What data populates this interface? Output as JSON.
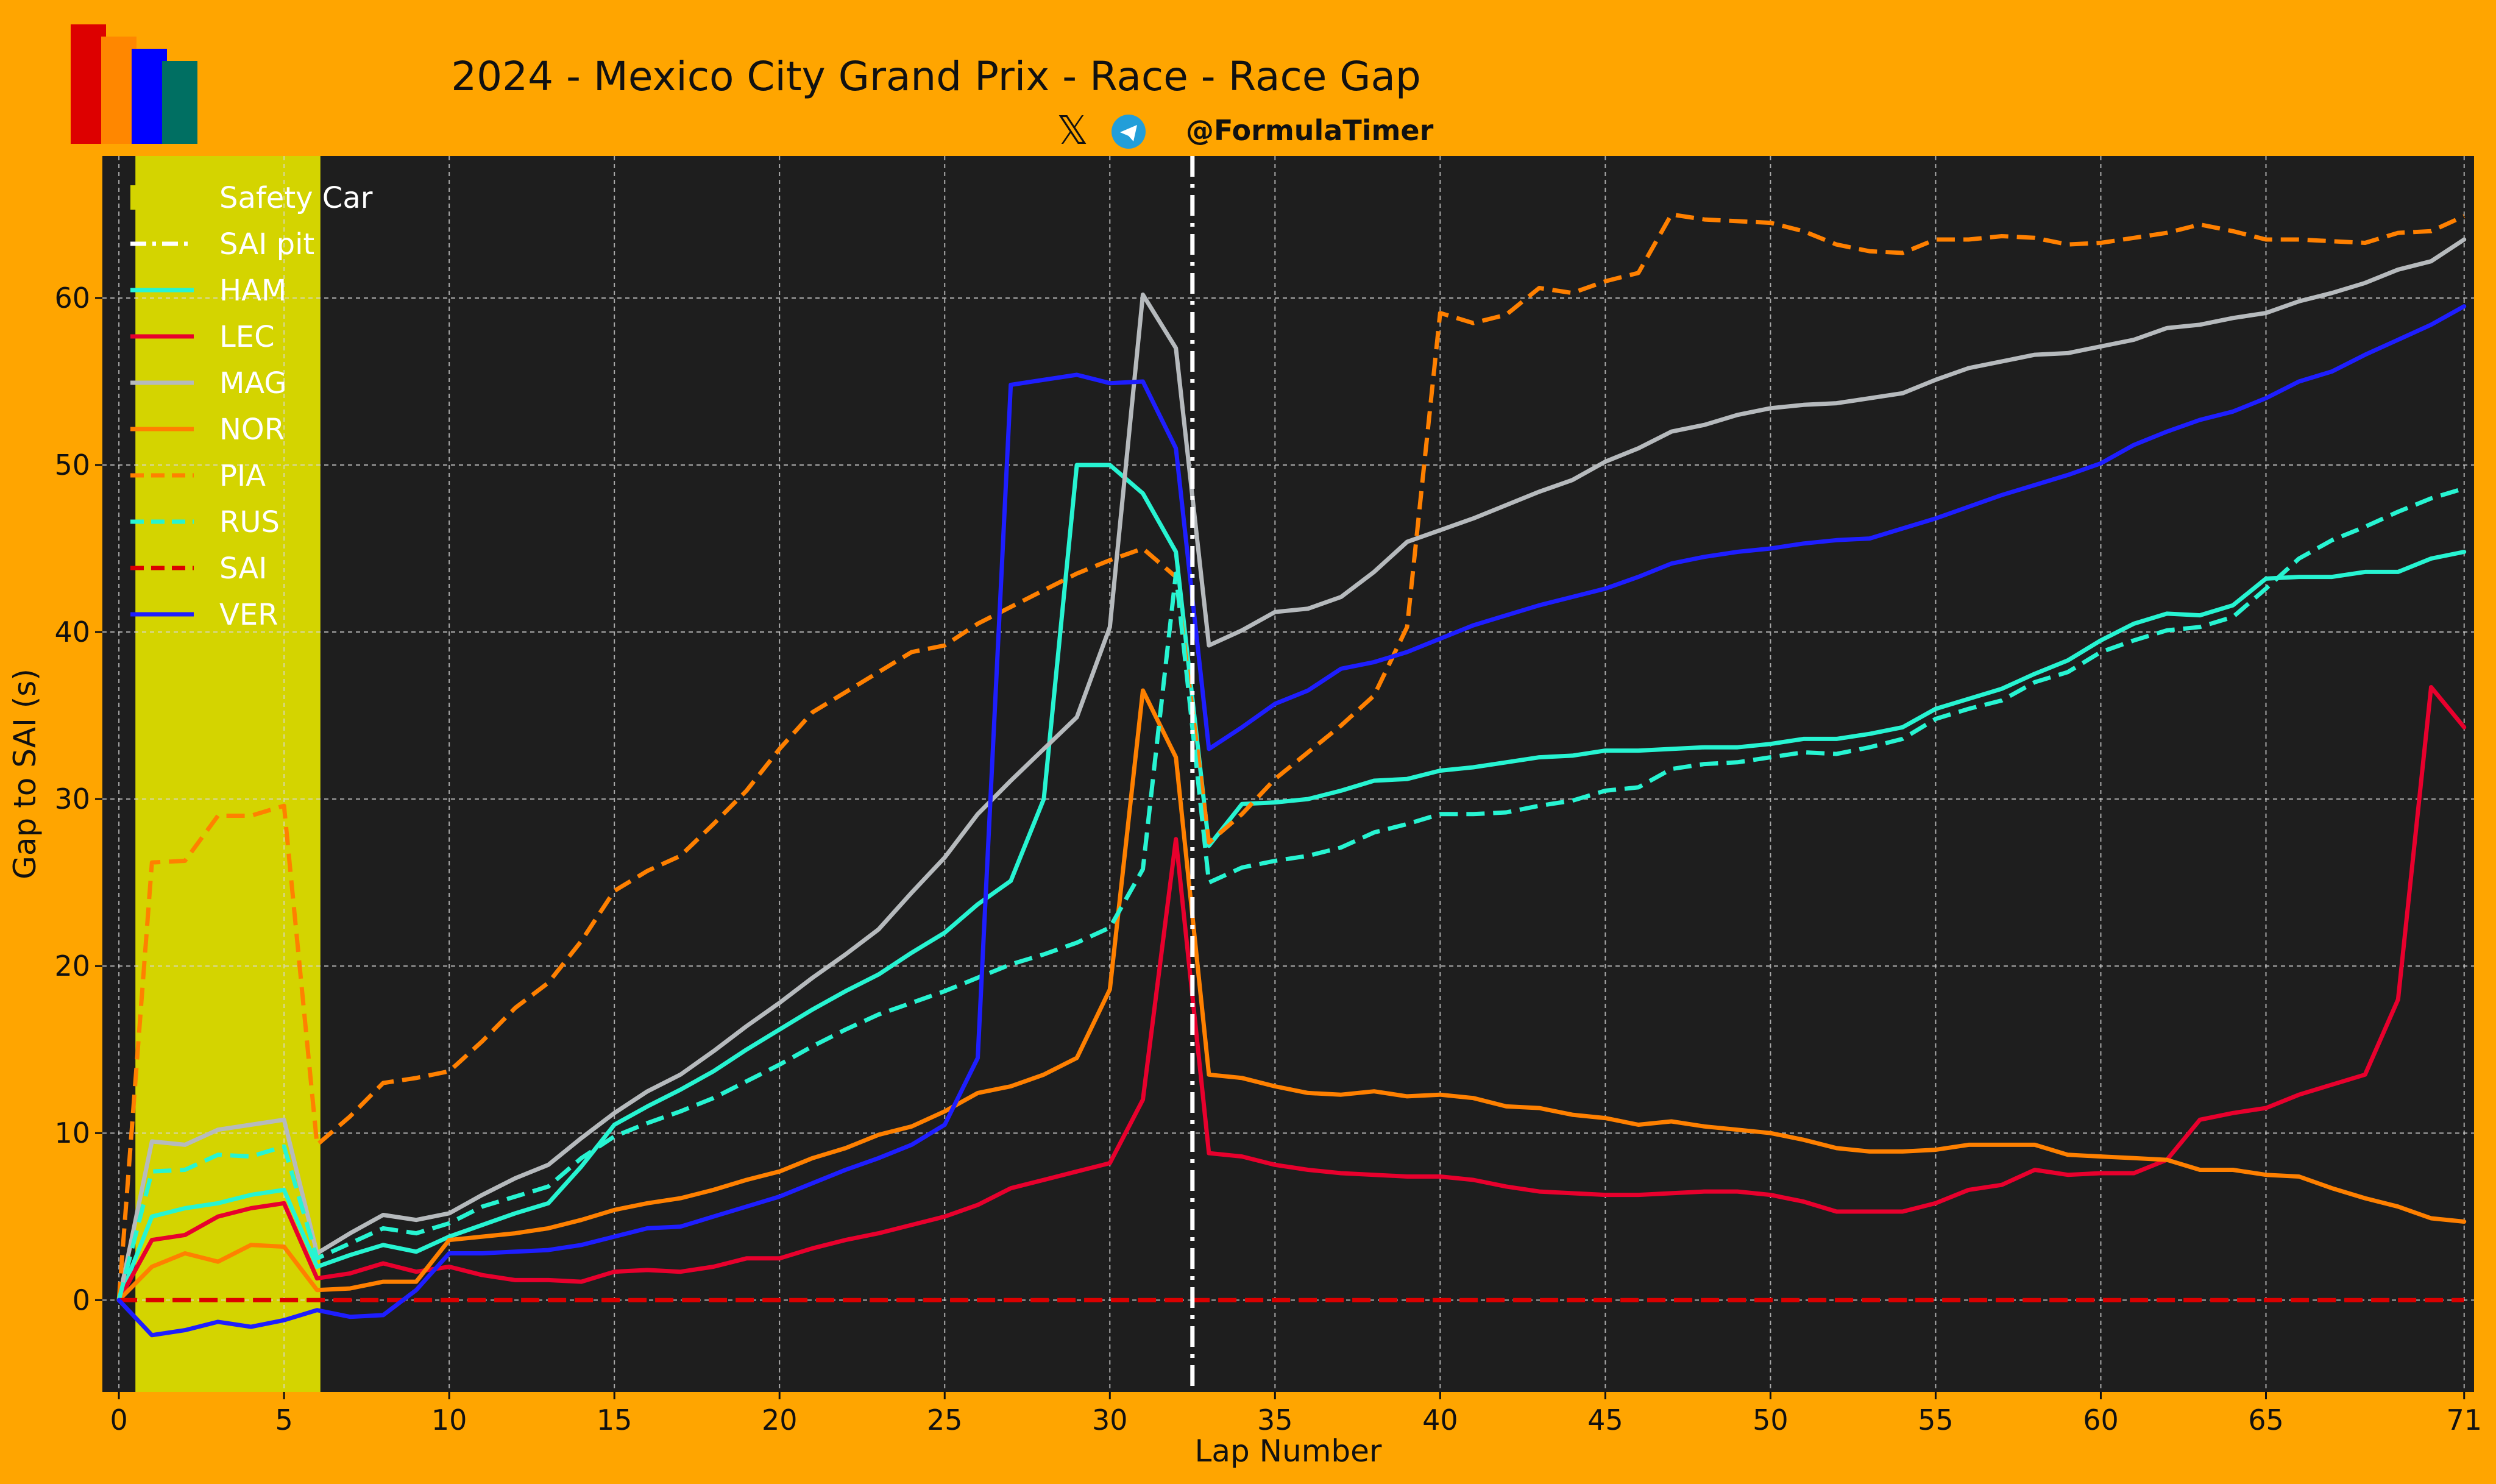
{
  "header": {
    "title": "2024 - Mexico City Grand Prix - Race - Race Gap",
    "handle": "@FormulaTimer"
  },
  "colors": {
    "background": "#FFA500",
    "plot_bg": "#1E1E1E",
    "safety_car": "#D4D400",
    "logo": [
      "#DD0000",
      "#FF8700",
      "#0000FF",
      "#006F62"
    ]
  },
  "chart_data": {
    "type": "line",
    "title": "2024 - Mexico City Grand Prix - Race - Race Gap",
    "xlabel": "Lap Number",
    "ylabel": "Gap to SAI (s)",
    "xlim": [
      -0.5,
      71.3
    ],
    "ylim": [
      -5.5,
      68.5
    ],
    "xticks": [
      0,
      5,
      10,
      15,
      20,
      25,
      30,
      35,
      40,
      45,
      50,
      55,
      60,
      65,
      71
    ],
    "yticks": [
      0,
      10,
      20,
      30,
      40,
      50,
      60
    ],
    "grid": true,
    "legend_position": "top-left",
    "safety_car": {
      "label": "Safety Car",
      "x_start": 0.5,
      "x_end": 6.1,
      "color": "#D4D400"
    },
    "pit": {
      "label": "SAI pit",
      "x": 32.5,
      "color": "#FFFFFF"
    },
    "series": [
      {
        "name": "HAM",
        "color": "#27F4D2",
        "dash": "solid",
        "values": [
          0,
          5.0,
          5.5,
          5.8,
          6.3,
          6.6,
          2.0,
          2.7,
          3.3,
          2.9,
          3.8,
          4.5,
          5.2,
          5.8,
          8.0,
          10.5,
          11.6,
          12.6,
          13.7,
          15.0,
          16.2,
          17.4,
          18.5,
          19.5,
          20.8,
          22.0,
          23.7,
          25.1,
          30.0,
          50.0,
          50.0,
          48.3,
          44.8,
          27.2,
          29.7,
          29.8,
          30.0,
          30.5,
          31.1,
          31.2,
          31.7,
          31.9,
          32.2,
          32.5,
          32.6,
          32.9,
          32.9,
          33.0,
          33.1,
          33.1,
          33.3,
          33.6,
          33.6,
          33.9,
          34.3,
          35.4,
          36.0,
          36.6,
          37.5,
          38.3,
          39.5,
          40.5,
          41.1,
          41.0,
          41.6,
          43.2,
          43.3,
          43.3,
          43.6,
          43.6,
          44.4,
          44.8
        ]
      },
      {
        "name": "LEC",
        "color": "#E8002D",
        "dash": "solid",
        "values": [
          0,
          3.6,
          3.9,
          5.0,
          5.5,
          5.8,
          1.3,
          1.6,
          2.2,
          1.7,
          2.0,
          1.5,
          1.2,
          1.2,
          1.1,
          1.7,
          1.8,
          1.7,
          2.0,
          2.5,
          2.5,
          3.1,
          3.6,
          4.0,
          4.5,
          5.0,
          5.7,
          6.7,
          7.2,
          7.7,
          8.2,
          12.0,
          27.6,
          8.8,
          8.6,
          8.1,
          7.8,
          7.6,
          7.5,
          7.4,
          7.4,
          7.2,
          6.8,
          6.5,
          6.4,
          6.3,
          6.3,
          6.4,
          6.5,
          6.5,
          6.3,
          5.9,
          5.3,
          5.3,
          5.3,
          5.8,
          6.6,
          6.9,
          7.8,
          7.5,
          7.6,
          7.6,
          8.4,
          10.8,
          11.2,
          11.5,
          12.3,
          12.9,
          13.5,
          18.0,
          36.7,
          34.3
        ]
      },
      {
        "name": "MAG",
        "color": "#B6BABD",
        "dash": "solid",
        "values": [
          0,
          9.5,
          9.3,
          10.2,
          10.5,
          10.8,
          2.8,
          4.0,
          5.1,
          4.8,
          5.2,
          6.3,
          7.3,
          8.1,
          9.7,
          11.2,
          12.5,
          13.5,
          14.9,
          16.4,
          17.8,
          19.3,
          20.7,
          22.2,
          24.4,
          26.5,
          29.1,
          31.1,
          33.0,
          34.9,
          40.3,
          60.2,
          57.0,
          39.2,
          40.1,
          41.2,
          41.4,
          42.1,
          43.6,
          45.4,
          46.1,
          46.8,
          47.6,
          48.4,
          49.1,
          50.2,
          51.0,
          52.0,
          52.4,
          53.0,
          53.4,
          53.6,
          53.7,
          54.0,
          54.3,
          55.1,
          55.8,
          56.2,
          56.6,
          56.7,
          57.1,
          57.5,
          58.2,
          58.4,
          58.8,
          59.1,
          59.8,
          60.3,
          60.9,
          61.7,
          62.2,
          63.5
        ]
      },
      {
        "name": "NOR",
        "color": "#FF8000",
        "dash": "solid",
        "values": [
          0,
          2.0,
          2.8,
          2.3,
          3.3,
          3.2,
          0.6,
          0.7,
          1.1,
          1.1,
          3.6,
          3.8,
          4.0,
          4.3,
          4.8,
          5.4,
          5.8,
          6.1,
          6.6,
          7.2,
          7.7,
          8.5,
          9.1,
          9.9,
          10.4,
          11.3,
          12.4,
          12.8,
          13.5,
          14.5,
          18.6,
          36.5,
          32.5,
          13.5,
          13.3,
          12.8,
          12.4,
          12.3,
          12.5,
          12.2,
          12.3,
          12.1,
          11.6,
          11.5,
          11.1,
          10.9,
          10.5,
          10.7,
          10.4,
          10.2,
          10.0,
          9.6,
          9.1,
          8.9,
          8.9,
          9.0,
          9.3,
          9.3,
          9.3,
          8.7,
          8.6,
          8.5,
          8.4,
          7.8,
          7.8,
          7.5,
          7.4,
          6.7,
          6.1,
          5.6,
          4.9,
          4.7
        ]
      },
      {
        "name": "PIA",
        "color": "#FF8000",
        "dash": "dashed",
        "values": [
          0,
          26.2,
          26.3,
          29.0,
          29.0,
          29.6,
          9.3,
          11.0,
          13.0,
          13.3,
          13.7,
          15.5,
          17.5,
          19.0,
          21.5,
          24.5,
          25.7,
          26.6,
          28.5,
          30.5,
          33.0,
          35.2,
          36.4,
          37.6,
          38.8,
          39.2,
          40.5,
          41.5,
          42.5,
          43.5,
          44.3,
          45.0,
          43.3,
          27.4,
          29.1,
          31.2,
          32.8,
          34.4,
          36.2,
          40.3,
          59.1,
          58.5,
          59.0,
          60.6,
          60.3,
          61.0,
          61.5,
          65.0,
          64.7,
          64.6,
          64.5,
          64.0,
          63.2,
          62.8,
          62.7,
          63.5,
          63.5,
          63.7,
          63.6,
          63.2,
          63.3,
          63.6,
          63.9,
          64.4,
          64.0,
          63.5,
          63.5,
          63.4,
          63.3,
          63.9,
          64.0,
          64.9
        ]
      },
      {
        "name": "RUS",
        "color": "#27F4D2",
        "dash": "dashed",
        "values": [
          0,
          7.7,
          7.8,
          8.7,
          8.6,
          9.2,
          2.5,
          3.4,
          4.3,
          4.0,
          4.6,
          5.6,
          6.2,
          6.8,
          8.5,
          9.8,
          10.6,
          11.3,
          12.1,
          13.1,
          14.1,
          15.2,
          16.2,
          17.1,
          17.8,
          18.5,
          19.3,
          20.1,
          20.7,
          21.4,
          22.3,
          25.8,
          43.5,
          25.0,
          25.9,
          26.3,
          26.6,
          27.1,
          28.0,
          28.5,
          29.1,
          29.1,
          29.2,
          29.6,
          29.9,
          30.5,
          30.7,
          31.8,
          32.1,
          32.2,
          32.5,
          32.8,
          32.7,
          33.1,
          33.6,
          34.8,
          35.4,
          35.9,
          37.0,
          37.6,
          38.8,
          39.5,
          40.1,
          40.3,
          40.9,
          42.6,
          44.4,
          45.5,
          46.3,
          47.2,
          48.0,
          48.6
        ]
      },
      {
        "name": "SAI",
        "color": "#DC0000",
        "dash": "dashed",
        "values": [
          0,
          0,
          0,
          0,
          0,
          0,
          0,
          0,
          0,
          0,
          0,
          0,
          0,
          0,
          0,
          0,
          0,
          0,
          0,
          0,
          0,
          0,
          0,
          0,
          0,
          0,
          0,
          0,
          0,
          0,
          0,
          0,
          0,
          0,
          0,
          0,
          0,
          0,
          0,
          0,
          0,
          0,
          0,
          0,
          0,
          0,
          0,
          0,
          0,
          0,
          0,
          0,
          0,
          0,
          0,
          0,
          0,
          0,
          0,
          0,
          0,
          0,
          0,
          0,
          0,
          0,
          0,
          0,
          0,
          0,
          0,
          0
        ]
      },
      {
        "name": "VER",
        "color": "#1E1EFF",
        "dash": "solid",
        "values": [
          0,
          -2.1,
          -1.8,
          -1.3,
          -1.6,
          -1.2,
          -0.6,
          -1.0,
          -0.9,
          0.6,
          2.8,
          2.8,
          2.9,
          3.0,
          3.3,
          3.8,
          4.3,
          4.4,
          5.0,
          5.6,
          6.2,
          7.0,
          7.8,
          8.5,
          9.3,
          10.5,
          14.5,
          54.8,
          55.1,
          55.4,
          54.9,
          55.0,
          51.0,
          33.0,
          34.3,
          35.7,
          36.5,
          37.8,
          38.2,
          38.8,
          39.6,
          40.4,
          41.0,
          41.6,
          42.1,
          42.6,
          43.3,
          44.1,
          44.5,
          44.8,
          45.0,
          45.3,
          45.5,
          45.6,
          46.2,
          46.8,
          47.5,
          48.2,
          48.8,
          49.4,
          50.1,
          51.2,
          52.0,
          52.7,
          53.2,
          54.0,
          55.0,
          55.6,
          56.6,
          57.5,
          58.4,
          59.5
        ]
      }
    ]
  }
}
